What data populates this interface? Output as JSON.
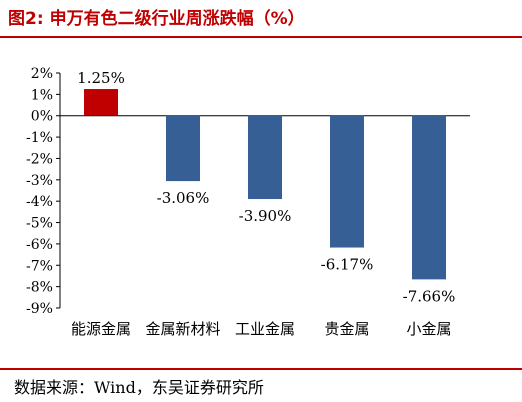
{
  "figure": {
    "number": "图2:",
    "title": "申万有色二级行业周涨跌幅（%）",
    "source": "数据来源：Wind，东吴证券研究所"
  },
  "colors": {
    "title": "#c00000",
    "rule": "#c00000",
    "positive_bar": "#c00000",
    "negative_bar": "#365f96",
    "axis": "#000000"
  },
  "chart_data": {
    "type": "bar",
    "categories": [
      "能源金属",
      "金属新材料",
      "工业金属",
      "贵金属",
      "小金属"
    ],
    "values": [
      1.25,
      -3.06,
      -3.9,
      -6.17,
      -7.66
    ],
    "value_labels": [
      "1.25%",
      "-3.06%",
      "-3.90%",
      "-6.17%",
      "-7.66%"
    ],
    "ylim": [
      -9,
      2
    ],
    "yticks": [
      2,
      1,
      0,
      -1,
      -2,
      -3,
      -4,
      -5,
      -6,
      -7,
      -8,
      -9
    ],
    "ytick_labels": [
      "2%",
      "1%",
      "0%",
      "-1%",
      "-2%",
      "-3%",
      "-4%",
      "-5%",
      "-6%",
      "-7%",
      "-8%",
      "-9%"
    ],
    "grid": false,
    "legend": "none"
  }
}
